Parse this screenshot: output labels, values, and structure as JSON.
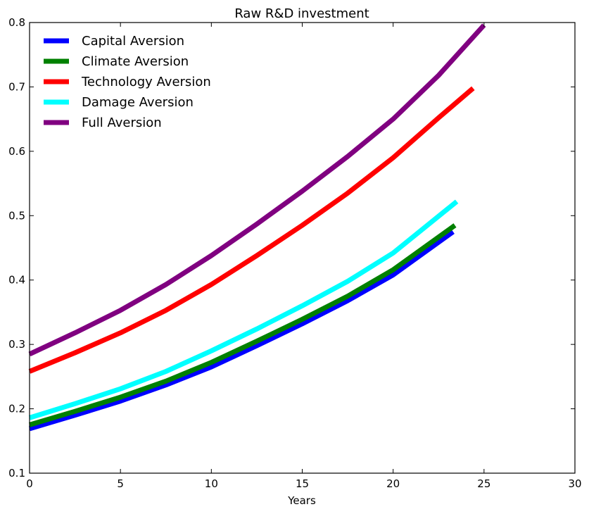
{
  "chart_data": {
    "type": "line",
    "title": "Raw R&D investment",
    "xlabel": "Years",
    "ylabel": "",
    "xlim": [
      0,
      30
    ],
    "ylim": [
      0.1,
      0.8
    ],
    "xticks": [
      0,
      5,
      10,
      15,
      20,
      25,
      30
    ],
    "yticks": [
      0.1,
      0.2,
      0.3,
      0.4,
      0.5,
      0.6,
      0.7,
      0.8
    ],
    "grid": false,
    "legend_position": "top-left",
    "series": [
      {
        "name": "Capital Aversion",
        "color": "#0000ff",
        "x": [
          0,
          2.5,
          5,
          7.5,
          10,
          12.5,
          15,
          17.5,
          20,
          23.3
        ],
        "y": [
          0.169,
          0.19,
          0.212,
          0.237,
          0.265,
          0.298,
          0.332,
          0.368,
          0.408,
          0.475
        ]
      },
      {
        "name": "Climate Aversion",
        "color": "#008000",
        "x": [
          0,
          2.5,
          5,
          7.5,
          10,
          12.5,
          15,
          17.5,
          20,
          23.4
        ],
        "y": [
          0.175,
          0.196,
          0.218,
          0.243,
          0.272,
          0.305,
          0.339,
          0.375,
          0.416,
          0.485
        ]
      },
      {
        "name": "Technology Aversion",
        "color": "#ff0000",
        "x": [
          0,
          2.5,
          5,
          7.5,
          10,
          12.5,
          15,
          17.5,
          20,
          22.5,
          24.4
        ],
        "y": [
          0.258,
          0.287,
          0.318,
          0.353,
          0.393,
          0.438,
          0.485,
          0.535,
          0.59,
          0.652,
          0.698
        ]
      },
      {
        "name": "Damage Aversion",
        "color": "#00ffff",
        "x": [
          0,
          2.5,
          5,
          7.5,
          10,
          12.5,
          15,
          17.5,
          20,
          23.5
        ],
        "y": [
          0.186,
          0.208,
          0.231,
          0.258,
          0.29,
          0.324,
          0.36,
          0.398,
          0.442,
          0.522
        ]
      },
      {
        "name": "Full Aversion",
        "color": "#800080",
        "x": [
          0,
          2.5,
          5,
          7.5,
          10,
          12.5,
          15,
          17.5,
          20,
          22.5,
          25
        ],
        "y": [
          0.285,
          0.318,
          0.353,
          0.393,
          0.438,
          0.487,
          0.538,
          0.592,
          0.65,
          0.718,
          0.796
        ]
      }
    ]
  }
}
